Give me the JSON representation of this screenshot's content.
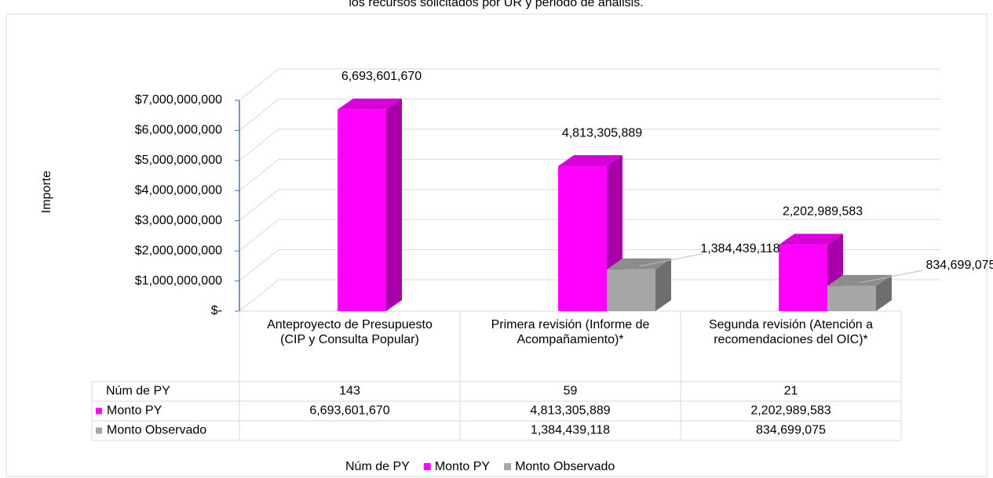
{
  "chart_data": {
    "type": "bar3d",
    "title": "los recursos solicitados por UR y periodo de análisis.",
    "y_label": "Importe",
    "categories": [
      "Anteproyecto de Presupuesto (CIP y Consulta Popular)",
      "Primera revisión (Informe de Acompañamiento)*",
      "Segunda revisión (Atención a recomendaciones del OIC)*"
    ],
    "ylim": [
      0,
      7000000000
    ],
    "yticks": [
      {
        "value": 0,
        "label": "$-"
      },
      {
        "value": 1000000000,
        "label": "$1,000,000,000"
      },
      {
        "value": 2000000000,
        "label": "$2,000,000,000"
      },
      {
        "value": 3000000000,
        "label": "$3,000,000,000"
      },
      {
        "value": 4000000000,
        "label": "$4,000,000,000"
      },
      {
        "value": 5000000000,
        "label": "$5,000,000,000"
      },
      {
        "value": 6000000000,
        "label": "$6,000,000,000"
      },
      {
        "value": 7000000000,
        "label": "$7,000,000,000"
      }
    ],
    "grid": true,
    "series": [
      {
        "name": "Núm de PY",
        "values": [
          143,
          59,
          21
        ]
      },
      {
        "name": "Monto PY",
        "color": "#ff00ff",
        "side": "#a800a8",
        "top": "#d800d8",
        "values": [
          6693601670,
          4813305889,
          2202989583
        ],
        "value_labels": [
          "6,693,601,670",
          "4,813,305,889",
          "2,202,989,583"
        ]
      },
      {
        "name": "Monto Observado",
        "color": "#a6a6a6",
        "side": "#6e6e6e",
        "top": "#8c8c8c",
        "values": [
          null,
          1384439118,
          834699075
        ],
        "value_labels": [
          null,
          "1,384,439,118",
          "834,699,075"
        ]
      }
    ]
  }
}
